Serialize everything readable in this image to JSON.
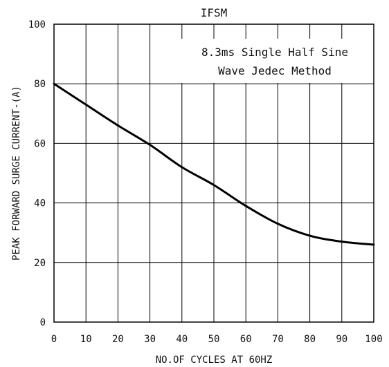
{
  "chart_data": {
    "type": "line",
    "title": "IFSM",
    "xlabel": "NO.OF CYCLES AT 60HZ",
    "ylabel": "PEAK FORWARD SURGE CURRENT-(A)",
    "xlim": [
      0,
      100
    ],
    "ylim": [
      0,
      100
    ],
    "xticks": [
      "0",
      "10",
      "20",
      "30",
      "40",
      "50",
      "60",
      "70",
      "80",
      "90",
      "100"
    ],
    "yticks": [
      "0",
      "20",
      "40",
      "60",
      "80",
      "100"
    ],
    "grid": true,
    "annotation": [
      "8.3ms Single Half Sine",
      "Wave Jedec Method"
    ],
    "series": [
      {
        "x": [
          0,
          10,
          20,
          30,
          40,
          50,
          60,
          70,
          80,
          90,
          100
        ],
        "y": [
          80,
          73,
          66,
          59.5,
          52,
          46,
          39,
          33,
          29,
          27,
          26
        ]
      }
    ]
  }
}
